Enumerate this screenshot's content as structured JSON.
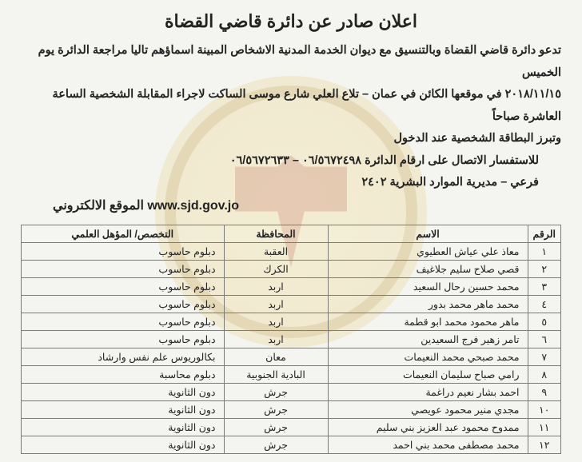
{
  "title": "اعلان صادر عن دائرة قاضي القضاة",
  "paragraph": {
    "l1": "تدعو دائرة قاضي القضاة وبالتنسيق مع ديوان الخدمة المدنية الاشخاص المبينة اسماؤهم تاليا مراجعة الدائرة يوم الخميس",
    "l2": "٢٠١٨/١١/١٥ في موقعها الكائن في عمان – تلاع العلي شارع موسى الساكت لاجراء المقابلة الشخصية الساعة العاشرة صباحاً",
    "l3": "وتبرز البطاقة الشخصية عند الدخول",
    "l4": "للاستفسار الاتصال على ارقام الدائرة ٠٦/٥٦٧٢٤٩٨ – ٠٦/٥٦٧٢٦٣٣",
    "l5": "فرعي – مديرية الموارد البشرية ٢٤٠٢",
    "l6": "الموقع الالكتروني www.sjd.gov.jo"
  },
  "table": {
    "headers": {
      "num": "الرقم",
      "name": "الاسم",
      "gov": "المحافظة",
      "qual": "التخصص/ المؤهل العلمي"
    },
    "rows": [
      {
        "num": "١",
        "name": "معاذ علي عياش العطيوي",
        "gov": "العقبة",
        "qual": "دبلوم حاسوب"
      },
      {
        "num": "٢",
        "name": "قصي صلاح سليم جلاغيف",
        "gov": "الكرك",
        "qual": "دبلوم حاسوب"
      },
      {
        "num": "٣",
        "name": "محمد حسين رحال السعيد",
        "gov": "اربد",
        "qual": "دبلوم حاسوب"
      },
      {
        "num": "٤",
        "name": "محمد ماهر محمد بدور",
        "gov": "اربد",
        "qual": "دبلوم حاسوب"
      },
      {
        "num": "٥",
        "name": "ماهر محمود محمد ابو قطمة",
        "gov": "اربد",
        "qual": "دبلوم حاسوب"
      },
      {
        "num": "٦",
        "name": "تامر زهير فرج السعيدين",
        "gov": "اربد",
        "qual": "دبلوم حاسوب"
      },
      {
        "num": "٧",
        "name": "محمد صبحي محمد النعيمات",
        "gov": "معان",
        "qual": "بكالوريوس علم نفس وارشاد"
      },
      {
        "num": "٨",
        "name": "رامي صباح سليمان النعيمات",
        "gov": "البادية الجنوبية",
        "qual": "دبلوم محاسبة"
      },
      {
        "num": "٩",
        "name": "احمد بشار نعيم دراغمة",
        "gov": "جرش",
        "qual": "دون الثانوية"
      },
      {
        "num": "١٠",
        "name": "مجدي منير محمود عويصي",
        "gov": "جرش",
        "qual": "دون الثانوية"
      },
      {
        "num": "١١",
        "name": "ممدوح محمود عبد العزيز بني سليم",
        "gov": "جرش",
        "qual": "دون الثانوية"
      },
      {
        "num": "١٢",
        "name": "محمد مصطفى محمد بني احمد",
        "gov": "جرش",
        "qual": "دون الثانوية"
      }
    ]
  }
}
